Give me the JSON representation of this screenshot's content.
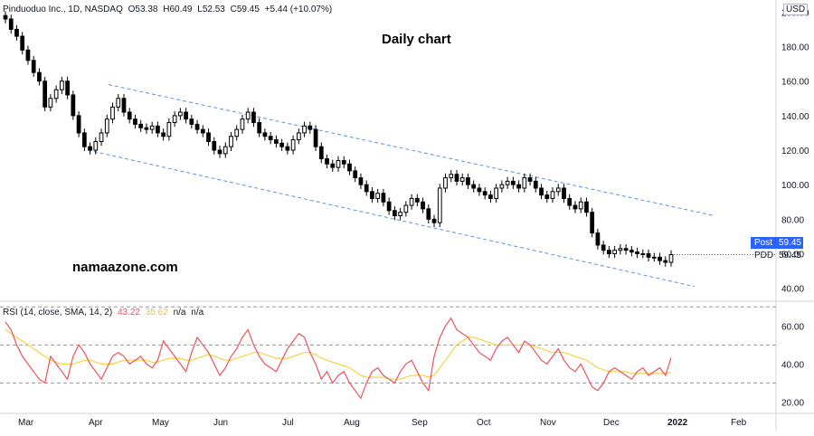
{
  "legend": {
    "symbol": "Pinduoduo Inc., 1D, NASDAQ",
    "open": "O53.38",
    "high": "H60.49",
    "low": "L52.53",
    "close": "C59.45",
    "change": "+5.44 (+10.07%)"
  },
  "currency": "USD",
  "annotation_title": "Daily chart",
  "watermark": "namaazone.com",
  "price_tag": {
    "label": "Post",
    "value": "59.45"
  },
  "symbol_tag": {
    "label": "PDD",
    "value": "59.45"
  },
  "rsi_legend": {
    "name": "RSI (14, close, SMA, 14, 2)",
    "rsi_value": "43.22",
    "ma_value": "35.62",
    "na1": "n/a",
    "na2": "n/a"
  },
  "colors": {
    "candle_up": "#ffffff",
    "candle_down": "#000000",
    "trendline": "#5b8ff0",
    "rsi": "#f0525b",
    "rsi_ma": "#f5d342",
    "accent": "#2962ff"
  },
  "chart_data": {
    "type": "candlestick",
    "price_axis_ticks": [
      40,
      60,
      80,
      100,
      120,
      140,
      160,
      180,
      200
    ],
    "price_axis_labels": [
      "40.00",
      "60.00",
      "80.00",
      "100.00",
      "120.00",
      "140.00",
      "160.00",
      "180.00",
      "200.00"
    ],
    "price_range": [
      33,
      207
    ],
    "time_axis_labels": [
      "Mar",
      "Apr",
      "May",
      "Jun",
      "Jul",
      "Aug",
      "Sep",
      "Oct",
      "Nov",
      "Dec",
      "2022",
      "Feb"
    ],
    "last_close": 59.45,
    "candles_close_approx": [
      196,
      190,
      186,
      178,
      172,
      165,
      160,
      145,
      150,
      155,
      160,
      152,
      140,
      130,
      122,
      120,
      125,
      130,
      138,
      145,
      150,
      142,
      138,
      135,
      133,
      132,
      134,
      130,
      128,
      136,
      140,
      142,
      138,
      135,
      132,
      130,
      125,
      120,
      118,
      122,
      128,
      132,
      138,
      142,
      136,
      130,
      128,
      126,
      124,
      122,
      120,
      126,
      130,
      134,
      132,
      122,
      115,
      112,
      110,
      114,
      112,
      108,
      104,
      100,
      96,
      92,
      95,
      90,
      85,
      82,
      84,
      88,
      92,
      90,
      86,
      80,
      78,
      98,
      104,
      106,
      102,
      104,
      100,
      98,
      96,
      94,
      92,
      98,
      100,
      102,
      100,
      98,
      104,
      102,
      98,
      94,
      92,
      96,
      98,
      92,
      88,
      86,
      90,
      84,
      72,
      65,
      62,
      60,
      62,
      63,
      62,
      61,
      60,
      60,
      58,
      58,
      56,
      55,
      59.45
    ],
    "trend_channel": {
      "upper": {
        "from": [
          "Apr",
          158
        ],
        "to": [
          "Jan 2022",
          82
        ]
      },
      "lower": {
        "from": [
          "Apr",
          120
        ],
        "to": [
          "Jan 2022",
          41
        ]
      }
    },
    "rsi": {
      "axis_ticks": [
        20,
        40,
        60
      ],
      "axis_labels": [
        "20.00",
        "40.00",
        "60.00"
      ],
      "range": [
        15,
        72
      ],
      "levels": [
        70,
        50,
        30
      ],
      "rsi_values": [
        62,
        58,
        50,
        44,
        40,
        36,
        32,
        30,
        44,
        40,
        36,
        32,
        44,
        50,
        46,
        40,
        36,
        32,
        38,
        44,
        46,
        44,
        40,
        42,
        44,
        40,
        38,
        42,
        52,
        48,
        44,
        40,
        36,
        46,
        54,
        50,
        46,
        40,
        34,
        38,
        44,
        48,
        54,
        58,
        50,
        44,
        40,
        38,
        36,
        42,
        48,
        52,
        56,
        54,
        46,
        40,
        32,
        36,
        30,
        34,
        36,
        30,
        26,
        22,
        30,
        36,
        38,
        34,
        32,
        30,
        36,
        40,
        42,
        36,
        30,
        26,
        44,
        54,
        60,
        64,
        58,
        56,
        54,
        50,
        46,
        44,
        42,
        48,
        52,
        54,
        50,
        46,
        52,
        50,
        46,
        42,
        40,
        44,
        48,
        42,
        38,
        36,
        40,
        34,
        28,
        26,
        30,
        36,
        38,
        36,
        34,
        32,
        36,
        38,
        34,
        36,
        38,
        34,
        43.22
      ],
      "ma_values": [
        58,
        56,
        54,
        52,
        50,
        48,
        46,
        44,
        42,
        41,
        40,
        40,
        40,
        41,
        42,
        42,
        41,
        40,
        40,
        40,
        41,
        42,
        42,
        42,
        42,
        42,
        41,
        41,
        42,
        43,
        43,
        43,
        42,
        42,
        43,
        44,
        45,
        44,
        43,
        42,
        42,
        43,
        44,
        45,
        46,
        46,
        45,
        44,
        43,
        43,
        43,
        44,
        45,
        46,
        46,
        45,
        43,
        42,
        41,
        40,
        39,
        38,
        36,
        34,
        33,
        33,
        33,
        33,
        32,
        32,
        32,
        33,
        34,
        34,
        34,
        33,
        34,
        38,
        42,
        46,
        50,
        52,
        54,
        54,
        53,
        52,
        51,
        50,
        50,
        50,
        50,
        50,
        50,
        50,
        49,
        48,
        47,
        46,
        46,
        46,
        45,
        44,
        43,
        42,
        40,
        38,
        37,
        36,
        36,
        36,
        36,
        35,
        35,
        35,
        35,
        35,
        35,
        35,
        35.62
      ]
    }
  }
}
